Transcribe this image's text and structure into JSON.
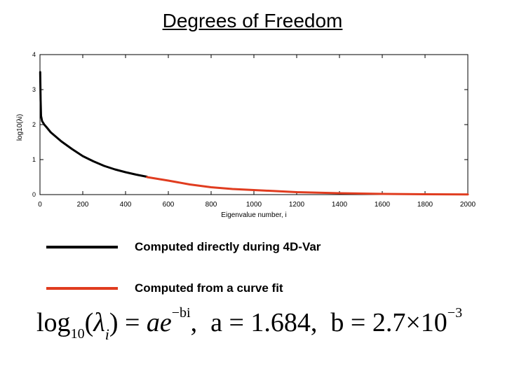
{
  "title": "Degrees of Freedom",
  "chart_data": {
    "type": "line",
    "xlabel": "Eigenvalue number, i",
    "ylabel": "log10(λi)",
    "xlim": [
      0,
      2000
    ],
    "ylim": [
      0,
      4
    ],
    "x_ticks": [
      0,
      200,
      400,
      600,
      800,
      1000,
      1200,
      1400,
      1600,
      1800,
      2000
    ],
    "y_ticks": [
      0,
      1,
      2,
      3,
      4
    ],
    "grid": false,
    "series": [
      {
        "name": "Computed directly during 4D-Var",
        "color": "#000000",
        "x": [
          1,
          3,
          5,
          10,
          15,
          20,
          30,
          50,
          100,
          150,
          200,
          250,
          300,
          350,
          400,
          450,
          500
        ],
        "y": [
          3.5,
          2.7,
          2.25,
          2.1,
          2.05,
          2.0,
          1.93,
          1.78,
          1.52,
          1.3,
          1.1,
          0.95,
          0.82,
          0.72,
          0.64,
          0.57,
          0.51
        ]
      },
      {
        "name": "Computed from a curve fit",
        "color": "#e03c1f",
        "x": [
          500,
          600,
          700,
          800,
          900,
          1000,
          1200,
          1400,
          1600,
          1800,
          2000
        ],
        "y": [
          0.5,
          0.4,
          0.29,
          0.21,
          0.16,
          0.13,
          0.07,
          0.04,
          0.02,
          0.01,
          0.007
        ]
      }
    ]
  },
  "legend": [
    {
      "label": "Computed directly during 4D-Var",
      "color": "#000000"
    },
    {
      "label": "Computed from a curve fit",
      "color": "#e03c1f"
    }
  ],
  "formula": {
    "lhs": "log",
    "base": "10",
    "lambda": "λ",
    "index": "i",
    "rhs_a": "ae",
    "exponent": "−bi",
    "a_value": "a = 1.684,",
    "b_value": "b = 2.7×10",
    "b_exponent": "−3"
  }
}
